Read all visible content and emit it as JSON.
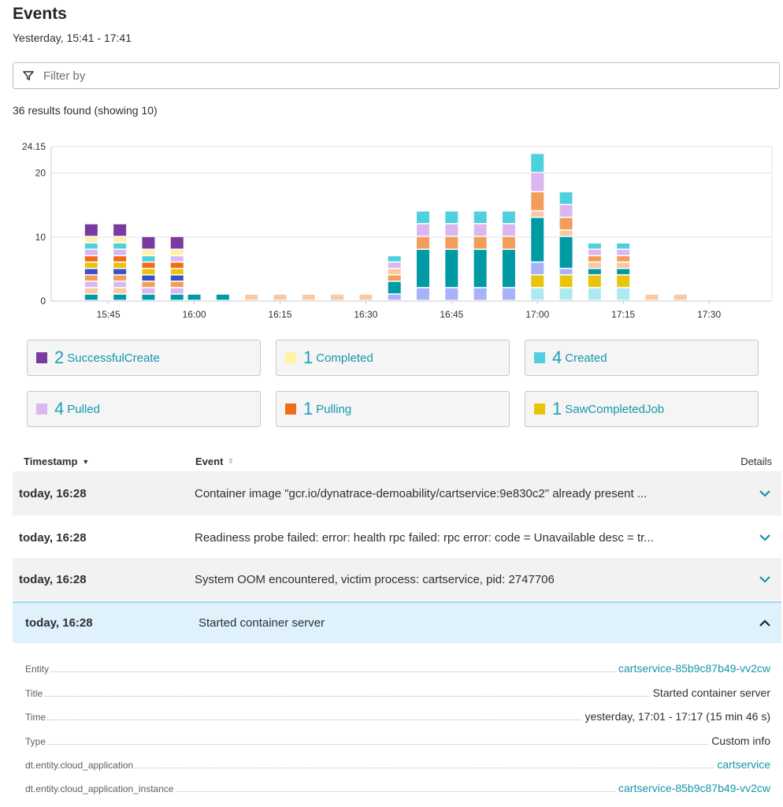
{
  "page": {
    "title": "Events",
    "timeframe": "Yesterday, 15:41 - 17:41",
    "filter_placeholder": "Filter by",
    "results_text": "36 results found (showing 10)"
  },
  "colors": {
    "accent": "#1596ac",
    "SuccessfulCreate": "#7b3aa0",
    "Completed": "#fff1a6",
    "Created": "#4fd0df",
    "Pulled": "#dcb6f0",
    "Pulling": "#f26a1b",
    "SawCompletedJob": "#eac40c",
    "Scheduled": "#f9c9a3",
    "Started": "#009aa5",
    "Failed": "#f29d59",
    "Killing": "#3e4fc5",
    "BackOff": "#a7b2f7",
    "Other": "#aee9f0",
    "Info": "#c6a15b"
  },
  "chart_data": {
    "type": "bar",
    "stacked": true,
    "ylim": [
      0,
      24.15
    ],
    "y_ticks": [
      "0",
      "10",
      "20",
      "24.15"
    ],
    "x_ticks": [
      "15:45",
      "16:00",
      "16:15",
      "16:30",
      "16:45",
      "17:00",
      "17:15",
      "17:30"
    ],
    "grid": true,
    "bars": [
      {
        "time": "15:42",
        "segments": [
          {
            "type": "Started",
            "value": 1
          },
          {
            "type": "Scheduled",
            "value": 1
          },
          {
            "type": "Pulled",
            "value": 1
          },
          {
            "type": "Failed",
            "value": 1
          },
          {
            "type": "Killing",
            "value": 1
          },
          {
            "type": "SawCompletedJob",
            "value": 1
          },
          {
            "type": "Pulling",
            "value": 1
          },
          {
            "type": "Pulled",
            "value": 1
          },
          {
            "type": "Created",
            "value": 1
          },
          {
            "type": "Completed",
            "value": 1
          },
          {
            "type": "SuccessfulCreate",
            "value": 2
          }
        ]
      },
      {
        "time": "15:47",
        "segments": [
          {
            "type": "Started",
            "value": 1
          },
          {
            "type": "Scheduled",
            "value": 1
          },
          {
            "type": "Pulled",
            "value": 1
          },
          {
            "type": "Failed",
            "value": 1
          },
          {
            "type": "Killing",
            "value": 1
          },
          {
            "type": "SawCompletedJob",
            "value": 1
          },
          {
            "type": "Pulling",
            "value": 1
          },
          {
            "type": "Pulled",
            "value": 1
          },
          {
            "type": "Created",
            "value": 1
          },
          {
            "type": "Completed",
            "value": 1
          },
          {
            "type": "SuccessfulCreate",
            "value": 2
          }
        ]
      },
      {
        "time": "15:52",
        "segments": [
          {
            "type": "Started",
            "value": 1
          },
          {
            "type": "Pulled",
            "value": 1
          },
          {
            "type": "Failed",
            "value": 1
          },
          {
            "type": "Killing",
            "value": 1
          },
          {
            "type": "SawCompletedJob",
            "value": 1
          },
          {
            "type": "Pulling",
            "value": 1
          },
          {
            "type": "Created",
            "value": 1
          },
          {
            "type": "Completed",
            "value": 1
          },
          {
            "type": "SuccessfulCreate",
            "value": 2
          }
        ]
      },
      {
        "time": "15:57",
        "segments": [
          {
            "type": "Started",
            "value": 1
          },
          {
            "type": "Pulled",
            "value": 1
          },
          {
            "type": "Failed",
            "value": 1
          },
          {
            "type": "Killing",
            "value": 1
          },
          {
            "type": "SawCompletedJob",
            "value": 1
          },
          {
            "type": "Pulling",
            "value": 1
          },
          {
            "type": "Pulled",
            "value": 1
          },
          {
            "type": "Completed",
            "value": 1
          },
          {
            "type": "SuccessfulCreate",
            "value": 2
          }
        ]
      },
      {
        "time": "16:00",
        "segments": [
          {
            "type": "Started",
            "value": 1
          }
        ]
      },
      {
        "time": "16:05",
        "segments": [
          {
            "type": "Started",
            "value": 1
          }
        ]
      },
      {
        "time": "16:10",
        "segments": [
          {
            "type": "Scheduled",
            "value": 1
          }
        ]
      },
      {
        "time": "16:15",
        "segments": [
          {
            "type": "Scheduled",
            "value": 1
          }
        ]
      },
      {
        "time": "16:20",
        "segments": [
          {
            "type": "Scheduled",
            "value": 1
          }
        ]
      },
      {
        "time": "16:25",
        "segments": [
          {
            "type": "Scheduled",
            "value": 1
          }
        ]
      },
      {
        "time": "16:30",
        "segments": [
          {
            "type": "Scheduled",
            "value": 1
          }
        ]
      },
      {
        "time": "16:35",
        "segments": [
          {
            "type": "BackOff",
            "value": 1
          },
          {
            "type": "Started",
            "value": 2
          },
          {
            "type": "Failed",
            "value": 1
          },
          {
            "type": "Scheduled",
            "value": 1
          },
          {
            "type": "Pulled",
            "value": 1
          },
          {
            "type": "Created",
            "value": 1
          }
        ]
      },
      {
        "time": "16:40",
        "segments": [
          {
            "type": "BackOff",
            "value": 2
          },
          {
            "type": "Started",
            "value": 6
          },
          {
            "type": "Failed",
            "value": 2
          },
          {
            "type": "Pulled",
            "value": 2
          },
          {
            "type": "Created",
            "value": 2
          }
        ]
      },
      {
        "time": "16:45",
        "segments": [
          {
            "type": "BackOff",
            "value": 2
          },
          {
            "type": "Started",
            "value": 6
          },
          {
            "type": "Failed",
            "value": 2
          },
          {
            "type": "Pulled",
            "value": 2
          },
          {
            "type": "Created",
            "value": 2
          }
        ]
      },
      {
        "time": "16:50",
        "segments": [
          {
            "type": "BackOff",
            "value": 2
          },
          {
            "type": "Started",
            "value": 6
          },
          {
            "type": "Failed",
            "value": 2
          },
          {
            "type": "Pulled",
            "value": 2
          },
          {
            "type": "Created",
            "value": 2
          }
        ]
      },
      {
        "time": "16:55",
        "segments": [
          {
            "type": "BackOff",
            "value": 2
          },
          {
            "type": "Started",
            "value": 6
          },
          {
            "type": "Failed",
            "value": 2
          },
          {
            "type": "Pulled",
            "value": 2
          },
          {
            "type": "Created",
            "value": 2
          }
        ]
      },
      {
        "time": "17:00",
        "segments": [
          {
            "type": "Other",
            "value": 2
          },
          {
            "type": "SawCompletedJob",
            "value": 2
          },
          {
            "type": "BackOff",
            "value": 2
          },
          {
            "type": "Started",
            "value": 7
          },
          {
            "type": "Scheduled",
            "value": 1
          },
          {
            "type": "Failed",
            "value": 3
          },
          {
            "type": "Pulled",
            "value": 3
          },
          {
            "type": "Created",
            "value": 3
          }
        ]
      },
      {
        "time": "17:05",
        "segments": [
          {
            "type": "Other",
            "value": 2
          },
          {
            "type": "SawCompletedJob",
            "value": 2
          },
          {
            "type": "BackOff",
            "value": 1
          },
          {
            "type": "Started",
            "value": 5
          },
          {
            "type": "Scheduled",
            "value": 1
          },
          {
            "type": "Failed",
            "value": 2
          },
          {
            "type": "Pulled",
            "value": 2
          },
          {
            "type": "Created",
            "value": 2
          }
        ]
      },
      {
        "time": "17:10",
        "segments": [
          {
            "type": "Other",
            "value": 2
          },
          {
            "type": "SawCompletedJob",
            "value": 2
          },
          {
            "type": "Started",
            "value": 1
          },
          {
            "type": "Scheduled",
            "value": 1
          },
          {
            "type": "Failed",
            "value": 1
          },
          {
            "type": "Pulled",
            "value": 1
          },
          {
            "type": "Created",
            "value": 1
          }
        ]
      },
      {
        "time": "17:15",
        "segments": [
          {
            "type": "Other",
            "value": 2
          },
          {
            "type": "SawCompletedJob",
            "value": 2
          },
          {
            "type": "Started",
            "value": 1
          },
          {
            "type": "Scheduled",
            "value": 1
          },
          {
            "type": "Failed",
            "value": 1
          },
          {
            "type": "Pulled",
            "value": 1
          },
          {
            "type": "Created",
            "value": 1
          }
        ]
      },
      {
        "time": "17:20",
        "segments": [
          {
            "type": "Scheduled",
            "value": 1
          }
        ]
      },
      {
        "time": "17:25",
        "segments": [
          {
            "type": "Scheduled",
            "value": 1
          }
        ]
      }
    ]
  },
  "legend": [
    {
      "count": "2",
      "label": "SuccessfulCreate",
      "color": "#7b3aa0"
    },
    {
      "count": "1",
      "label": "Completed",
      "color": "#fff1a6"
    },
    {
      "count": "4",
      "label": "Created",
      "color": "#4fd0df"
    },
    {
      "count": "4",
      "label": "Pulled",
      "color": "#dcb6f0"
    },
    {
      "count": "1",
      "label": "Pulling",
      "color": "#f26a1b"
    },
    {
      "count": "1",
      "label": "SawCompletedJob",
      "color": "#eac40c"
    }
  ],
  "table": {
    "columns": {
      "timestamp": "Timestamp",
      "event": "Event",
      "details": "Details"
    },
    "rows": [
      {
        "timestamp": "today, 16:28",
        "event": "Container image \"gcr.io/dynatrace-demoability/cartservice:9e830c2\" already present ...",
        "icon": "chevron-down-icon"
      },
      {
        "timestamp": "today, 16:28",
        "event": "Readiness probe failed: error: health rpc failed: rpc error: code = Unavailable desc = tr...",
        "icon": "chevron-down-icon"
      },
      {
        "timestamp": "today, 16:28",
        "event": "System OOM encountered, victim process: cartservice, pid: 2747706",
        "icon": "chevron-down-icon"
      },
      {
        "timestamp": "today, 16:28",
        "event": "Started container server",
        "icon": "chevron-up-icon"
      }
    ]
  },
  "details": [
    {
      "label": "Entity",
      "value": "cartservice-85b9c87b49-vv2cw",
      "link": true
    },
    {
      "label": "Title",
      "value": "Started container server",
      "link": false
    },
    {
      "label": "Time",
      "value": "yesterday, 17:01 - 17:17 (15 min 46 s)",
      "link": false
    },
    {
      "label": "Type",
      "value": "Custom info",
      "link": false
    },
    {
      "label": "dt.entity.cloud_application",
      "value": "cartservice",
      "link": true
    },
    {
      "label": "dt.entity.cloud_application_instance",
      "value": "cartservice-85b9c87b49-vv2cw",
      "link": true
    }
  ]
}
